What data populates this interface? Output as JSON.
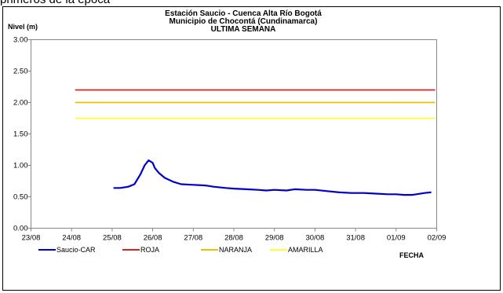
{
  "top_caption": "primeros de la época",
  "chart_data": {
    "type": "line",
    "title_lines": [
      "Estación Saucio - Cuenca Alta Río Bogotá",
      "Municipio de Chocontá (Cundinamarca)",
      "ULTIMA SEMANA"
    ],
    "ylabel": "Nivel (m)",
    "xlabel": "FECHA",
    "ylim": [
      0,
      3
    ],
    "xlim": [
      0,
      10
    ],
    "y_ticks": [
      "0.00",
      "0.50",
      "1.00",
      "1.50",
      "2.00",
      "2.50",
      "3.00"
    ],
    "x_ticks": [
      "23/08",
      "24/08",
      "25/08",
      "26/08",
      "27/08",
      "28/08",
      "29/08",
      "30/08",
      "31/08",
      "01/09",
      "02/09"
    ],
    "grid": false,
    "legend_position": "bottom-left",
    "series": [
      {
        "name": "Saucio-CAR",
        "color": "#0000cc",
        "x": [
          2.05,
          2.2,
          2.4,
          2.55,
          2.7,
          2.8,
          2.9,
          3.0,
          3.05,
          3.15,
          3.3,
          3.5,
          3.7,
          4.0,
          4.3,
          4.5,
          4.8,
          5.0,
          5.3,
          5.6,
          5.8,
          6.0,
          6.3,
          6.5,
          6.8,
          7.0,
          7.3,
          7.6,
          7.9,
          8.2,
          8.5,
          8.8,
          9.0,
          9.2,
          9.4,
          9.5,
          9.7,
          9.85
        ],
        "y": [
          0.64,
          0.64,
          0.66,
          0.7,
          0.86,
          1.0,
          1.08,
          1.04,
          0.96,
          0.88,
          0.8,
          0.74,
          0.7,
          0.69,
          0.68,
          0.66,
          0.64,
          0.63,
          0.62,
          0.61,
          0.6,
          0.61,
          0.6,
          0.62,
          0.61,
          0.61,
          0.59,
          0.57,
          0.56,
          0.56,
          0.55,
          0.54,
          0.54,
          0.53,
          0.53,
          0.54,
          0.56,
          0.57
        ]
      },
      {
        "name": "ROJA",
        "color": "#e02020",
        "x": [
          1.1,
          9.95
        ],
        "y": [
          2.2,
          2.2
        ]
      },
      {
        "name": "NARANJA",
        "color": "#f0c000",
        "x": [
          1.1,
          9.95
        ],
        "y": [
          2.0,
          2.0
        ]
      },
      {
        "name": "AMARILLA",
        "color": "#ffff33",
        "x": [
          1.1,
          9.95
        ],
        "y": [
          1.75,
          1.75
        ]
      }
    ]
  }
}
